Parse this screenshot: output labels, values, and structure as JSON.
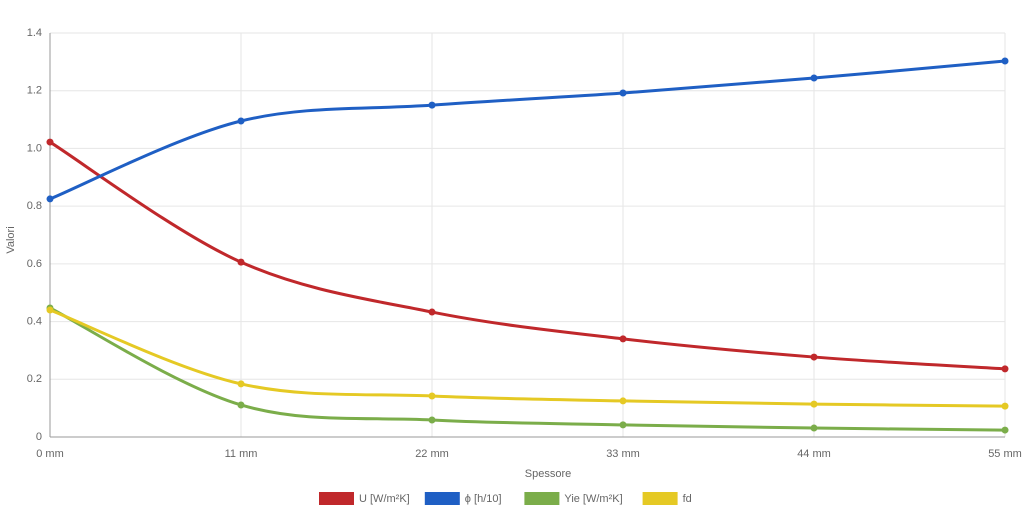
{
  "chart_data": {
    "type": "line",
    "x_label": "Spessore",
    "y_label": "Valori",
    "categories": [
      "0 mm",
      "11 mm",
      "22 mm",
      "33 mm",
      "44 mm",
      "55 mm"
    ],
    "series": [
      {
        "name": "U [W/m²K]",
        "color": "#c0282b",
        "values": [
          1.022,
          0.606,
          0.433,
          0.34,
          0.277,
          0.236
        ]
      },
      {
        "name": "ϕ [h/10]",
        "color": "#1f5fc4",
        "values": [
          0.825,
          1.095,
          1.15,
          1.192,
          1.244,
          1.303
        ]
      },
      {
        "name": "Yie [W/m²K]",
        "color": "#7bad4a",
        "values": [
          0.447,
          0.111,
          0.059,
          0.042,
          0.031,
          0.024
        ]
      },
      {
        "name": "fd",
        "color": "#e5c924",
        "values": [
          0.44,
          0.184,
          0.142,
          0.125,
          0.114,
          0.107
        ]
      }
    ],
    "ylim": [
      0,
      1.4
    ],
    "yticks": [
      0,
      0.2,
      0.4,
      0.6,
      0.8,
      {
        "value": 1,
        "label": "1.0"
      },
      1.2,
      1.4
    ],
    "grid": true
  }
}
